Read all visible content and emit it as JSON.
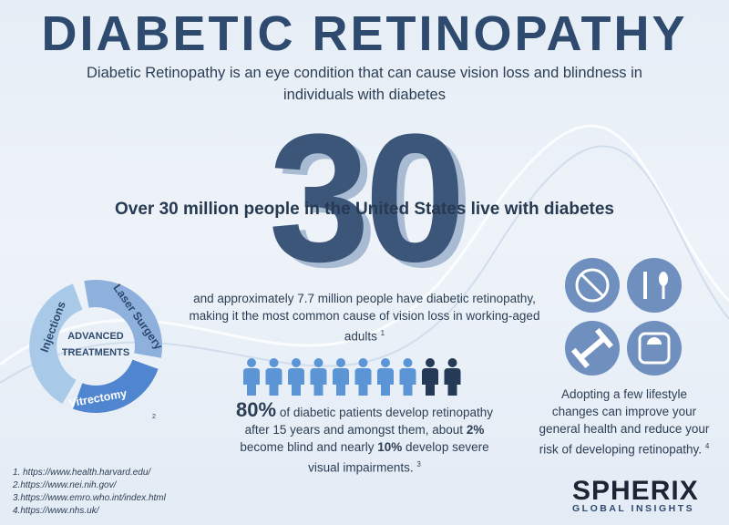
{
  "header": {
    "title": "DIABETIC RETINOPATHY",
    "subtitle": "Diabetic Retinopathy is an eye condition that can cause vision loss and blindness in individuals with diabetes"
  },
  "highlight": {
    "big_number": "30",
    "headline": "Over 30 million people in the United States live with diabetes",
    "text": "and approximately 7.7 million people have diabetic retinopathy, making it the most common cause of vision loss in working-aged adults",
    "footnote": "1"
  },
  "treatments": {
    "center": "ADVANCED TREATMENTS",
    "segments": [
      "Injections",
      "Laser Surgery",
      "Vitrectomy"
    ],
    "footnote": "2"
  },
  "stat": {
    "percent_1": "80%",
    "text_1": " of diabetic patients develop retinopathy after 15 years and amongst them, about ",
    "percent_2": "2%",
    "text_2": " become blind and nearly ",
    "percent_3": "10%",
    "text_3": " develop severe visual impairments.",
    "footnote": "3"
  },
  "lifestyle": {
    "text": "Adopting a few lifestyle changes can improve your general health and reduce your risk of developing retinopathy.",
    "footnote": "4"
  },
  "references": [
    {
      "number": "1.",
      "url": "https://www.health.harvard.edu/"
    },
    {
      "number": "2.",
      "url": "https://www.nei.nih.gov/"
    },
    {
      "number": "3.",
      "url": "https://www.emro.who.int/index.html"
    },
    {
      "number": "4.",
      "url": "https://www.nhs.uk/"
    }
  ],
  "logo": {
    "name": "SPHERIX",
    "tagline": "GLOBAL INSIGHTS"
  }
}
